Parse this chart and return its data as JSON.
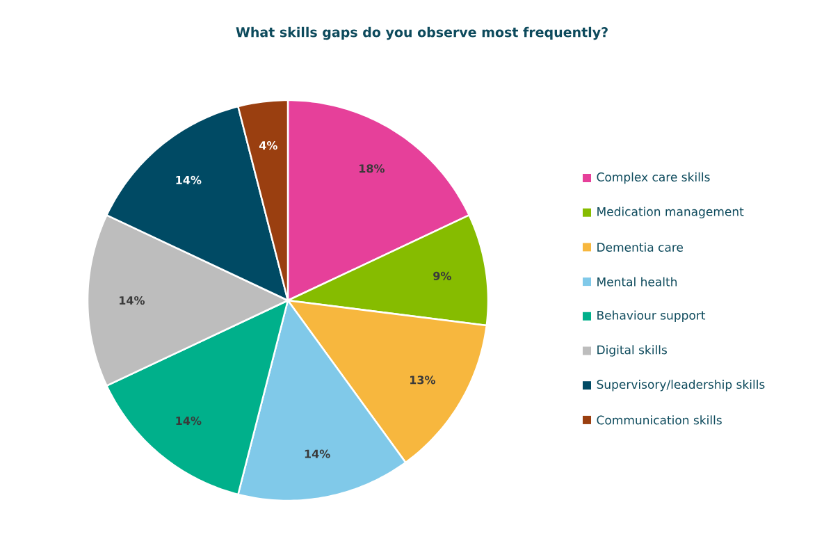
{
  "chart_data": {
    "type": "pie",
    "title": "What skills gaps do you observe most frequently?",
    "categories": [
      "Complex care skills",
      "Medication management",
      "Dementia care",
      "Mental health",
      "Behaviour support",
      "Digital skills",
      "Supervisory/leadership skills",
      "Communication skills"
    ],
    "values": [
      18,
      9,
      13,
      14,
      14,
      14,
      14,
      4
    ],
    "colors": [
      "#e6409a",
      "#86bc00",
      "#f7b73e",
      "#80c9e9",
      "#00b08b",
      "#bdbdbd",
      "#004a64",
      "#9a3f10"
    ],
    "value_labels": [
      "18%",
      "9%",
      "13%",
      "14%",
      "14%",
      "14%",
      "14%",
      "4%"
    ],
    "legend": "right"
  }
}
